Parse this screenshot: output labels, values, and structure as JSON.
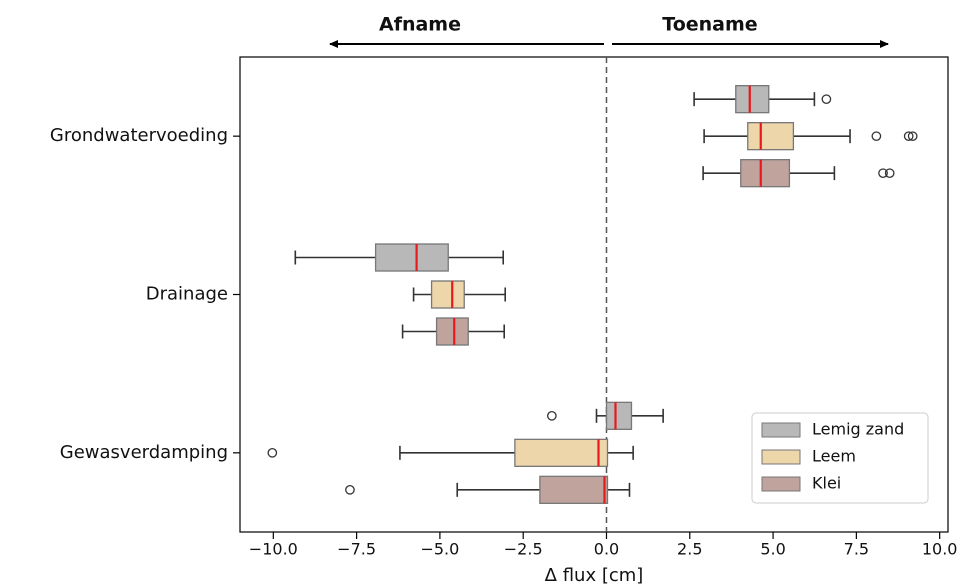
{
  "chart_data": {
    "type": "boxplot",
    "orientation": "horizontal",
    "xlabel": "Δ  flux [cm]",
    "annotations": [
      "Afname",
      "Toename"
    ],
    "categories": [
      "Grondwatervoeding",
      "Drainage",
      "Gewasverdamping"
    ],
    "xlim": [
      -11,
      10.25
    ],
    "xticks": [
      {
        "value": -10,
        "label": "−10.0"
      },
      {
        "value": -7.5,
        "label": "−7.5"
      },
      {
        "value": -5,
        "label": "−5.0"
      },
      {
        "value": -2.5,
        "label": "−2.5"
      },
      {
        "value": 0,
        "label": "0.0"
      },
      {
        "value": 2.5,
        "label": "2.5"
      },
      {
        "value": 5,
        "label": "5.0"
      },
      {
        "value": 7.5,
        "label": "7.5"
      },
      {
        "value": 10,
        "label": "10.0"
      }
    ],
    "reference_line": 0,
    "median_color": "#e8191b",
    "legend_location": "lower right",
    "series": [
      {
        "name": "Lemig zand",
        "color": "#b8b8b8",
        "boxes": [
          {
            "min": 2.63,
            "q1": 3.88,
            "median": 4.3,
            "q3": 4.87,
            "max": 6.24,
            "fliers": [
              6.6
            ]
          },
          {
            "min": -9.34,
            "q1": -6.93,
            "median": -5.7,
            "q3": -4.75,
            "max": -3.1,
            "fliers": []
          },
          {
            "min": -0.3,
            "q1": 0,
            "median": 0.27,
            "q3": 0.75,
            "max": 1.7,
            "fliers": [
              -1.64
            ]
          }
        ]
      },
      {
        "name": "Leem",
        "color": "#edd6aa",
        "boxes": [
          {
            "min": 2.93,
            "q1": 4.24,
            "median": 4.63,
            "q3": 5.61,
            "max": 7.31,
            "fliers": [
              8.1,
              9.07,
              9.19
            ]
          },
          {
            "min": -5.79,
            "q1": -5.25,
            "median": -4.63,
            "q3": -4.27,
            "max": -3.04,
            "fliers": []
          },
          {
            "min": -6.2,
            "q1": -2.75,
            "median": -0.24,
            "q3": 0.03,
            "max": 0.8,
            "fliers": [
              -10.03
            ]
          }
        ]
      },
      {
        "name": "Klei",
        "color": "#c0a39d",
        "boxes": [
          {
            "min": 2.9,
            "q1": 4.03,
            "median": 4.63,
            "q3": 5.49,
            "max": 6.84,
            "fliers": [
              8.3,
              8.5
            ]
          },
          {
            "min": -6.12,
            "q1": -5.1,
            "median": -4.57,
            "q3": -4.15,
            "max": -3.07,
            "fliers": []
          },
          {
            "min": -4.48,
            "q1": -2.0,
            "median": -0.06,
            "q3": 0.03,
            "max": 0.69,
            "fliers": [
              -7.7
            ]
          }
        ]
      }
    ]
  }
}
